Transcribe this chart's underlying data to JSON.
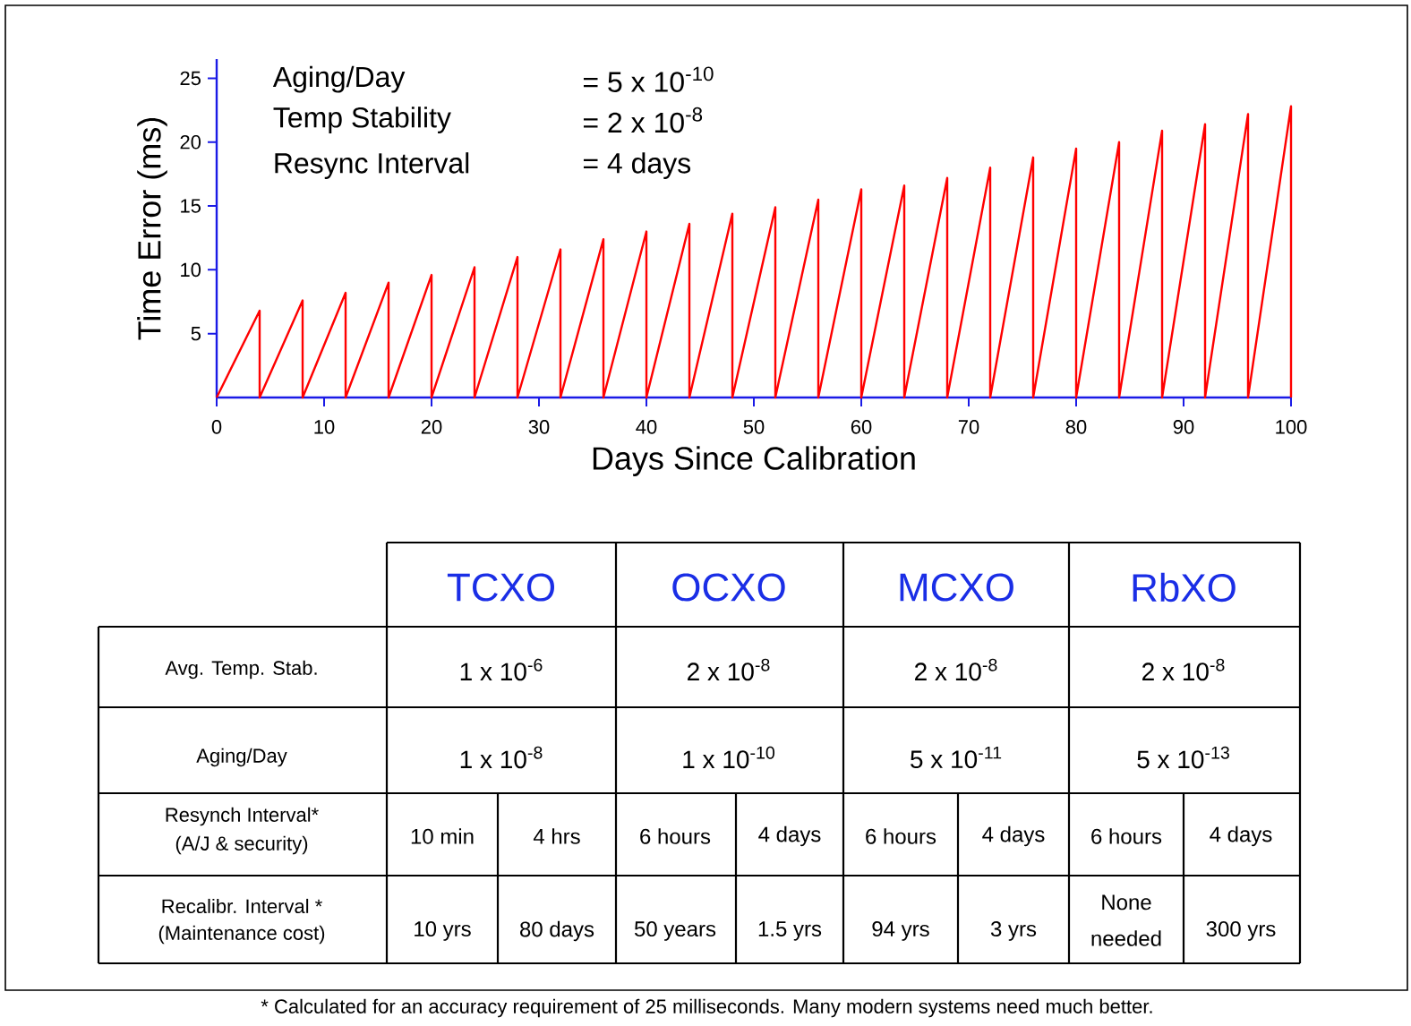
{
  "chart_data": [
    {
      "type": "line",
      "xlabel": "Days Since Calibration",
      "ylabel": "Time Error (ms)",
      "x": [
        0,
        4,
        4,
        8,
        8,
        12,
        12,
        16,
        16,
        20,
        20,
        24,
        24,
        28,
        28,
        32,
        32,
        36,
        36,
        40,
        40,
        44,
        44,
        48,
        48,
        52,
        52,
        56,
        56,
        60,
        60,
        64,
        64,
        68,
        68,
        72,
        72,
        76,
        76,
        80,
        80,
        84,
        84,
        88,
        88,
        92,
        92,
        96,
        96,
        100,
        100
      ],
      "series": [
        {
          "color": "#ff0000",
          "values": [
            0,
            6.8,
            0,
            7.6,
            0,
            8.2,
            0,
            9.0,
            0,
            9.6,
            0,
            10.2,
            0,
            11.0,
            0,
            11.6,
            0,
            12.4,
            0,
            13.0,
            0,
            13.6,
            0,
            14.4,
            0,
            14.9,
            0,
            15.5,
            0,
            16.3,
            0,
            16.6,
            0,
            17.2,
            0,
            18.0,
            0,
            18.8,
            0,
            19.5,
            0,
            20.0,
            0,
            20.9,
            0,
            21.4,
            0,
            22.2,
            0,
            22.8,
            0
          ]
        }
      ],
      "xlim": [
        0,
        100
      ],
      "ylim": [
        0,
        26.5
      ],
      "xticks": [
        0,
        10,
        20,
        30,
        40,
        50,
        60,
        70,
        80,
        90,
        100
      ],
      "yticks": [
        5,
        10,
        15,
        20,
        25
      ],
      "annotations": [
        "Aging/Day",
        "= 5 x 10$^{-10}$",
        "Temp Stability",
        "= 2 x 10$^{-8}$",
        "Resync Interval",
        "= 4 days"
      ]
    },
    {
      "type": "other",
      "annotations": [
        "TCXO",
        "OCXO",
        "MCXO",
        "RbXO",
        "Avg. Temp. Stab.",
        "1 x 10$^{-6}$",
        "2 x 10$^{-8}$",
        "2 x 10$^{-8}$",
        "2 x 10$^{-8}$",
        "Aging/Day",
        "1 x 10$^{-8}$",
        "1 x 10$^{-10}$",
        "5 x 10$^{-11}$",
        "5 x 10$^{-13}$",
        "Resynch Interval*",
        "(A/J & security)",
        "10 min",
        "4 hrs",
        "6 hours",
        "4 days",
        "6 hours",
        "4 days",
        "6 hours",
        "4 days",
        "Recalibr. Interval *",
        "(Maintenance cost)",
        "10 yrs",
        "80 days",
        "50 years",
        "1.5 yrs",
        "94 yrs",
        "3 yrs",
        "None",
        "needed",
        "300 yrs",
        "*  Calculated for an accuracy requirement of 25 milliseconds.  Many modern systems need much better."
      ]
    }
  ]
}
